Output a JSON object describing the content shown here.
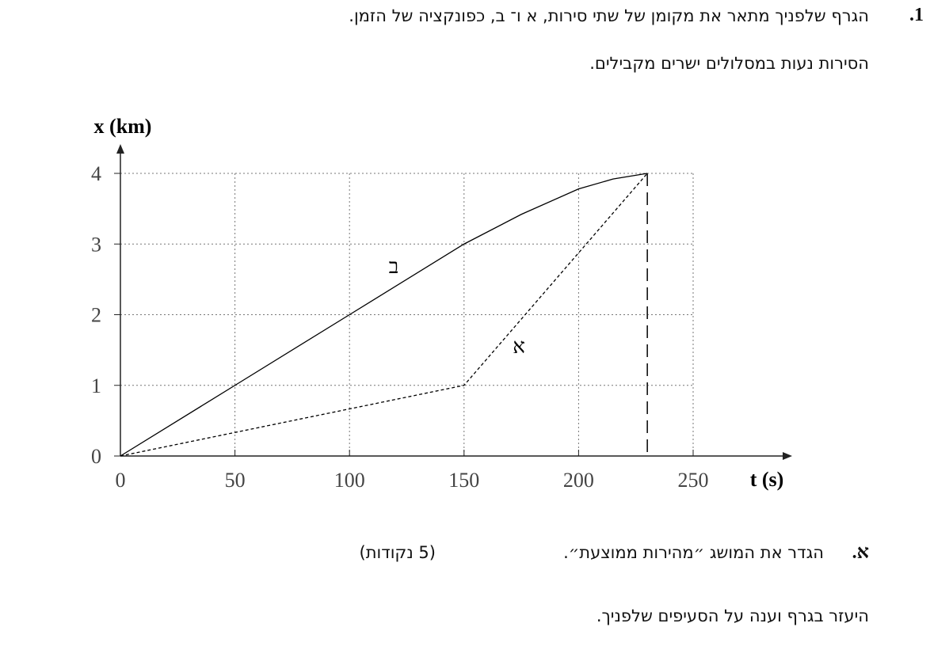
{
  "question": {
    "number": "1.",
    "lines": [
      "הגרף שלפניך מתאר את מקומן של שתי סירות, א ו־ ב, כפונקציה של הזמן.",
      "הסירות נעות במסלולים ישרים מקבילים."
    ]
  },
  "chart_data": {
    "type": "line",
    "x_label": "t (s)",
    "y_label": "x (km)",
    "xlim": [
      0,
      250
    ],
    "ylim": [
      0,
      4
    ],
    "xticks": [
      0,
      50,
      100,
      150,
      200,
      250
    ],
    "yticks": [
      0,
      1,
      2,
      3,
      4
    ],
    "grid": true,
    "series": [
      {
        "name": "ב",
        "color": "#000000",
        "dash": false,
        "x": [
          0,
          50,
          100,
          150,
          175,
          200,
          215,
          230
        ],
        "values": [
          0,
          1,
          2,
          3,
          3.42,
          3.78,
          3.92,
          4
        ]
      },
      {
        "name": "א",
        "color": "#000000",
        "dash": true,
        "x": [
          0,
          150,
          230
        ],
        "values": [
          0,
          1,
          4
        ]
      }
    ],
    "vlines": [
      230
    ]
  },
  "section": {
    "letter": "א.",
    "text": "הגדר את המושג ״מהירות ממוצעת״.",
    "points": "(5 נקודות)"
  },
  "instruction": "היעזר בגרף וענה על הסעיפים שלפניך."
}
